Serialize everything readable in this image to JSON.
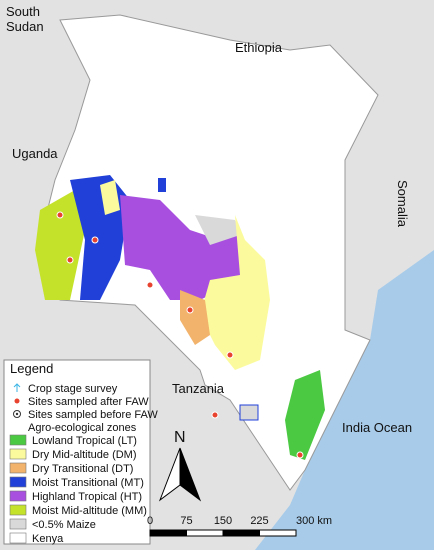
{
  "labels": {
    "south_sudan": "South\nSudan",
    "ethiopia": "Ethiopia",
    "uganda": "Uganda",
    "somalia": "Somalia",
    "tanzania": "Tanzania",
    "ocean": "India Ocean"
  },
  "legend": {
    "title": "Legend",
    "points": [
      {
        "label": "Crop stage survey",
        "symbol": "arrow",
        "color": "#3bb5e6"
      },
      {
        "label": "Sites sampled after FAW",
        "symbol": "dot",
        "color": "#e8432e"
      },
      {
        "label": "Sites sampled before FAW",
        "symbol": "ring",
        "color": "#333333"
      }
    ],
    "zones_title": "Agro-ecological zones",
    "zones": [
      {
        "label": "Lowland Tropical (LT)",
        "color": "#4bc943"
      },
      {
        "label": "Dry Mid-altitude (DM)",
        "color": "#fbfb9e"
      },
      {
        "label": "Dry Transitional (DT)",
        "color": "#f2b36c"
      },
      {
        "label": "Moist Transitional (MT)",
        "color": "#2040d8"
      },
      {
        "label": "Highland Tropical (HT)",
        "color": "#a84fe0"
      },
      {
        "label": "Moist Mid-altitude (MM)",
        "color": "#c4e22a"
      },
      {
        "label": "<0.5% Maize",
        "color": "#d9d9d9"
      },
      {
        "label": "Kenya",
        "color": "#ffffff"
      }
    ]
  },
  "north": "N",
  "scale_bar": {
    "labels": [
      "0",
      "75",
      "150",
      "225",
      "300 km"
    ]
  }
}
